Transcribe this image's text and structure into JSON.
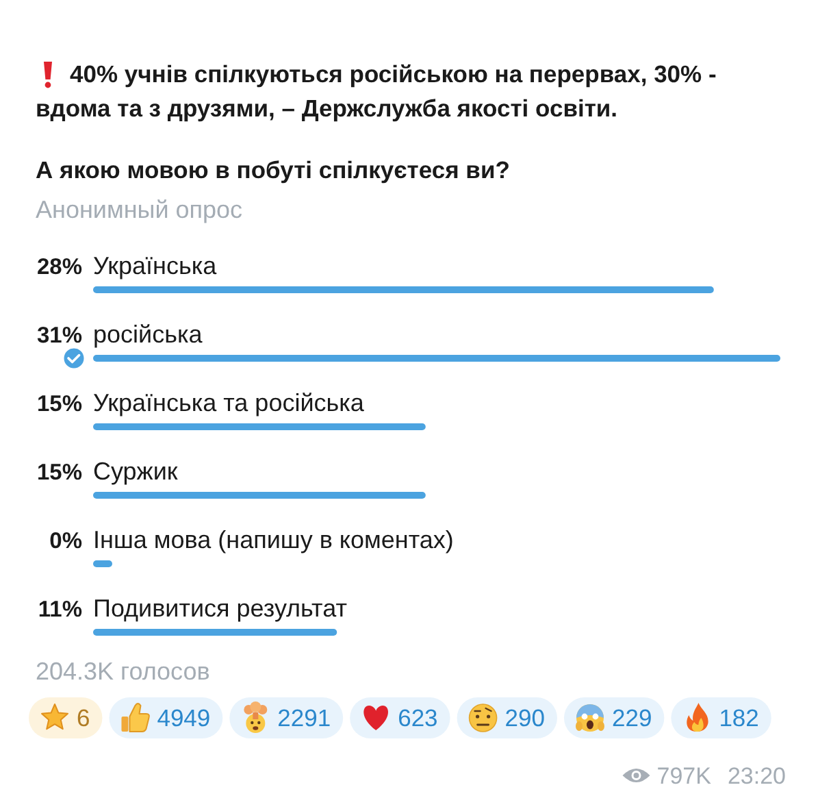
{
  "chart_data": {
    "type": "bar",
    "orientation": "horizontal",
    "title": "40% учнів спілкуються російською на перервах, 30% - вдома та з друзями, – Держслужба якості освіти.",
    "subtitle": "А якою мовою в побуті спілкуєтеся ви?",
    "categories": [
      "Українська",
      "російська",
      "Українська та російська",
      "Суржик",
      "Інша мова (напишу в коментах)",
      "Подивитися результат"
    ],
    "values": [
      28,
      31,
      15,
      15,
      0,
      11
    ],
    "value_labels": [
      "28%",
      "31%",
      "15%",
      "15%",
      "0%",
      "11%"
    ],
    "color": "#4ba3e0",
    "annotations": [
      "Анонимный опрос",
      "204.3K голосов",
      "6",
      "4949",
      "2291",
      "623",
      "290",
      "229",
      "182",
      "797K",
      "23:20"
    ]
  }
}
